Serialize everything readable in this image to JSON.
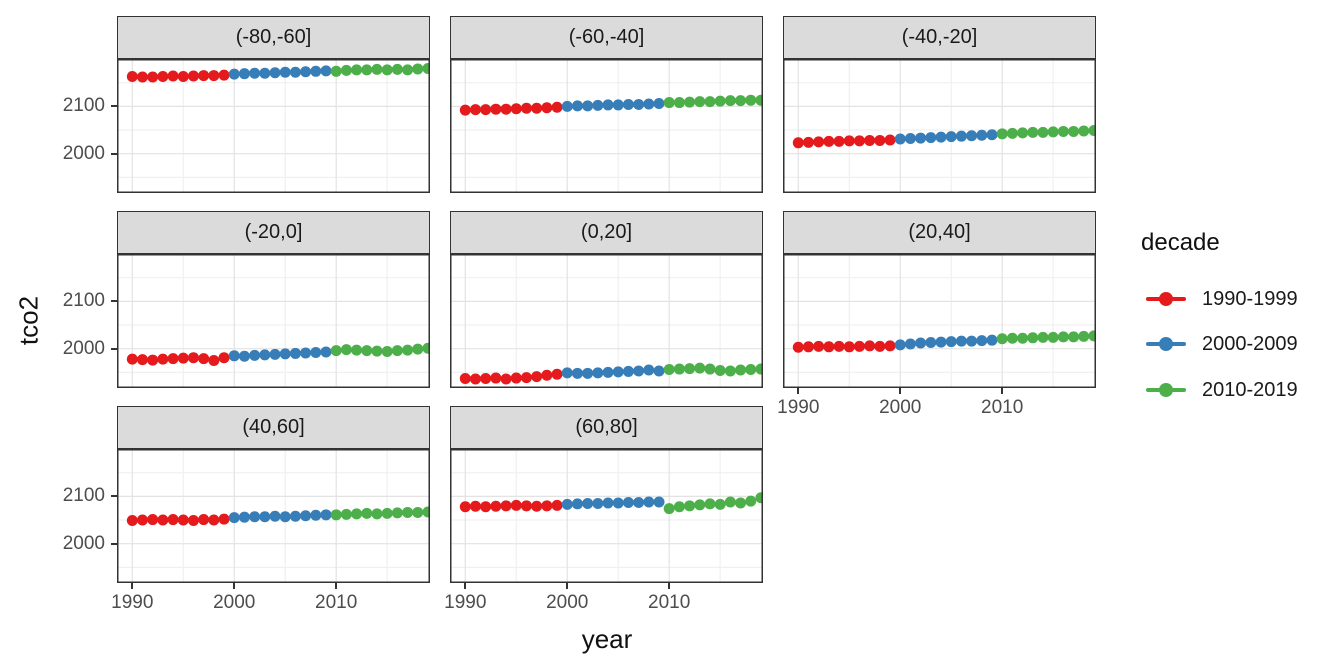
{
  "figure": {
    "ylab": "tco2",
    "xlab": "year"
  },
  "legend": {
    "title": "decade",
    "entries": [
      {
        "label": "1990-1999",
        "color": "#E41A1C"
      },
      {
        "label": "2000-2009",
        "color": "#377EB8"
      },
      {
        "label": "2010-2019",
        "color": "#4DAF4A"
      }
    ]
  },
  "axes": {
    "y_ticks": [
      {
        "label": "2100",
        "value": 2100
      },
      {
        "label": "2000",
        "value": 2000
      }
    ],
    "x_ticks": [
      {
        "label": "1990",
        "value": 1990
      },
      {
        "label": "2000",
        "value": 2000
      },
      {
        "label": "2010",
        "value": 2010
      }
    ]
  },
  "chart_data": {
    "type": "scatter",
    "title": "",
    "xlabel": "year",
    "ylabel": "tco2",
    "facet_variable": "latitude band",
    "color_variable": "decade",
    "legend_position": "right",
    "grid": true,
    "xlim": [
      1988.5,
      2019.2
    ],
    "ylim": [
      1917,
      2200
    ],
    "x_major_gridlines": [
      1990,
      2000,
      2010
    ],
    "x_minor_gridlines": [
      1995,
      2005,
      2015
    ],
    "y_major_gridlines": [
      2000,
      2100
    ],
    "y_minor_gridlines": [
      1950,
      2050,
      2150
    ],
    "decades": [
      {
        "name": "1990-1999",
        "color": "#E41A1C",
        "start": 1990,
        "end": 1999
      },
      {
        "name": "2000-2009",
        "color": "#377EB8",
        "start": 2000,
        "end": 2009
      },
      {
        "name": "2010-2019",
        "color": "#4DAF4A",
        "start": 2010,
        "end": 2019
      }
    ],
    "years": [
      1990,
      1991,
      1992,
      1993,
      1994,
      1995,
      1996,
      1997,
      1998,
      1999,
      2000,
      2001,
      2002,
      2003,
      2004,
      2005,
      2006,
      2007,
      2008,
      2009,
      2010,
      2011,
      2012,
      2013,
      2014,
      2015,
      2016,
      2017,
      2018,
      2019
    ],
    "facets": [
      {
        "label": "(-80,-60]",
        "values": [
          2163,
          2162,
          2162,
          2163,
          2164,
          2163,
          2164,
          2165,
          2165,
          2166,
          2168,
          2169,
          2170,
          2170,
          2171,
          2172,
          2172,
          2173,
          2174,
          2175,
          2174,
          2176,
          2177,
          2177,
          2178,
          2177,
          2178,
          2177,
          2179,
          2180
        ]
      },
      {
        "label": "(-60,-40]",
        "values": [
          2092,
          2093,
          2093,
          2094,
          2094,
          2095,
          2096,
          2096,
          2097,
          2098,
          2100,
          2101,
          2101,
          2102,
          2103,
          2103,
          2104,
          2104,
          2105,
          2106,
          2108,
          2108,
          2109,
          2110,
          2110,
          2111,
          2112,
          2112,
          2113,
          2113
        ]
      },
      {
        "label": "(-40,-20]",
        "values": [
          2023,
          2024,
          2025,
          2026,
          2026,
          2027,
          2027,
          2028,
          2028,
          2029,
          2031,
          2032,
          2033,
          2034,
          2035,
          2036,
          2037,
          2038,
          2039,
          2040,
          2042,
          2043,
          2044,
          2045,
          2045,
          2046,
          2047,
          2047,
          2048,
          2049
        ]
      },
      {
        "label": "(-20,0]",
        "values": [
          1978,
          1977,
          1976,
          1978,
          1979,
          1980,
          1981,
          1979,
          1975,
          1981,
          1985,
          1984,
          1986,
          1987,
          1988,
          1989,
          1990,
          1991,
          1992,
          1993,
          1996,
          1998,
          1997,
          1996,
          1995,
          1994,
          1996,
          1997,
          1999,
          2001
        ]
      },
      {
        "label": "(0,20]",
        "values": [
          1937,
          1936,
          1937,
          1938,
          1936,
          1938,
          1939,
          1941,
          1944,
          1946,
          1949,
          1948,
          1948,
          1949,
          1950,
          1951,
          1952,
          1953,
          1955,
          1953,
          1956,
          1957,
          1958,
          1959,
          1957,
          1954,
          1953,
          1955,
          1956,
          1957
        ]
      },
      {
        "label": "(20,40]",
        "values": [
          2003,
          2004,
          2005,
          2004,
          2005,
          2004,
          2005,
          2006,
          2005,
          2006,
          2008,
          2010,
          2012,
          2013,
          2014,
          2015,
          2016,
          2016,
          2017,
          2018,
          2021,
          2022,
          2022,
          2023,
          2024,
          2024,
          2025,
          2025,
          2026,
          2027
        ]
      },
      {
        "label": "(40,60]",
        "values": [
          2049,
          2050,
          2051,
          2050,
          2051,
          2050,
          2049,
          2051,
          2050,
          2052,
          2055,
          2056,
          2057,
          2057,
          2058,
          2057,
          2058,
          2059,
          2060,
          2061,
          2061,
          2062,
          2063,
          2064,
          2063,
          2064,
          2065,
          2066,
          2066,
          2067
        ]
      },
      {
        "label": "(60,80]",
        "values": [
          2078,
          2079,
          2078,
          2079,
          2080,
          2081,
          2080,
          2079,
          2080,
          2081,
          2083,
          2084,
          2085,
          2085,
          2086,
          2086,
          2087,
          2087,
          2088,
          2088,
          2074,
          2078,
          2080,
          2082,
          2084,
          2083,
          2088,
          2086,
          2090,
          2097
        ]
      }
    ]
  }
}
